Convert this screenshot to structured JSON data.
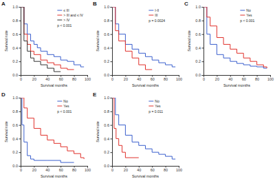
{
  "chart_data": [
    {
      "type": "line",
      "title": "A",
      "x_label": "Survival months",
      "y_label": "Survival rate",
      "annotation": "p < 0.001",
      "legend": "upper-right",
      "line_style": "step",
      "xlim": [
        0,
        100
      ],
      "xticks": [
        0,
        20,
        40,
        60,
        80,
        100
      ],
      "ylim": [
        0,
        1
      ],
      "yticks": [
        {
          "value": 0,
          "label": "0.0"
        },
        0.2,
        0.4,
        0.6,
        0.8,
        {
          "value": 1,
          "label": "1.0"
        }
      ],
      "series": [
        {
          "name": "≤ III",
          "color": "#3a5fcd",
          "x": [
            0,
            5,
            10,
            15,
            20,
            25,
            30,
            40,
            50,
            60,
            70,
            80,
            90,
            95
          ],
          "values": [
            1,
            0.75,
            0.6,
            0.5,
            0.45,
            0.4,
            0.35,
            0.3,
            0.27,
            0.22,
            0.2,
            0.15,
            0.12,
            0.12
          ]
        },
        {
          "name": "> III and ≤ IV",
          "color": "#e0302a",
          "x": [
            0,
            5,
            10,
            15,
            20,
            30,
            40,
            50,
            60,
            70,
            80
          ],
          "values": [
            1,
            0.6,
            0.45,
            0.35,
            0.3,
            0.22,
            0.18,
            0.15,
            0.1,
            0.08,
            0.08
          ]
        },
        {
          "name": "> IV",
          "color": "#333333",
          "x": [
            0,
            5,
            10,
            15,
            20,
            30,
            40,
            50,
            60
          ],
          "values": [
            1,
            0.5,
            0.35,
            0.25,
            0.2,
            0.15,
            0.1,
            0.05,
            0.05
          ]
        }
      ]
    },
    {
      "type": "line",
      "title": "B",
      "x_label": "Survival months",
      "y_label": "Survival rate",
      "annotation": "p = 0.0024",
      "legend": "upper-right",
      "line_style": "step",
      "xlim": [
        0,
        100
      ],
      "xticks": [
        0,
        20,
        40,
        60,
        80,
        100
      ],
      "ylim": [
        0,
        1
      ],
      "yticks": [
        {
          "value": 0,
          "label": "0.0"
        },
        0.2,
        0.4,
        0.6,
        0.8,
        {
          "value": 1,
          "label": "1.0"
        }
      ],
      "series": [
        {
          "name": "I-II",
          "color": "#3a5fcd",
          "x": [
            0,
            5,
            10,
            20,
            30,
            40,
            50,
            60,
            70,
            80,
            90,
            95
          ],
          "values": [
            1,
            0.75,
            0.6,
            0.45,
            0.38,
            0.32,
            0.27,
            0.22,
            0.18,
            0.15,
            0.12,
            0.12
          ]
        },
        {
          "name": "III",
          "color": "#e0302a",
          "x": [
            0,
            5,
            10,
            20,
            30,
            40,
            50,
            60
          ],
          "values": [
            1,
            0.65,
            0.5,
            0.35,
            0.25,
            0.15,
            0.08,
            0.08
          ]
        }
      ]
    },
    {
      "type": "line",
      "title": "C",
      "x_label": "Survival months",
      "y_label": "Survival rate",
      "annotation": "p < 0.001",
      "legend": "upper-right",
      "line_style": "step",
      "xlim": [
        0,
        100
      ],
      "xticks": [
        0,
        20,
        40,
        60,
        80,
        100
      ],
      "ylim": [
        0,
        1
      ],
      "yticks": [
        {
          "value": 0,
          "label": "0.0"
        },
        0.2,
        0.4,
        0.6,
        0.8,
        {
          "value": 1,
          "label": "1.0"
        }
      ],
      "series": [
        {
          "name": "No",
          "color": "#3a5fcd",
          "x": [
            0,
            5,
            10,
            20,
            30,
            40,
            50,
            60,
            70,
            80,
            90,
            95
          ],
          "values": [
            1,
            0.6,
            0.45,
            0.3,
            0.25,
            0.2,
            0.17,
            0.15,
            0.13,
            0.12,
            0.1,
            0.1
          ]
        },
        {
          "name": "Yes",
          "color": "#e0302a",
          "x": [
            0,
            5,
            10,
            20,
            30,
            40,
            50,
            60,
            70,
            80,
            90,
            95
          ],
          "values": [
            1,
            0.85,
            0.72,
            0.55,
            0.45,
            0.38,
            0.32,
            0.25,
            0.2,
            0.15,
            0.12,
            0.1
          ]
        }
      ]
    },
    {
      "type": "line",
      "title": "D",
      "x_label": "Survival months",
      "y_label": "Survival rate",
      "annotation": "p < 0.001",
      "legend": "upper-right",
      "line_style": "step",
      "xlim": [
        0,
        100
      ],
      "xticks": [
        0,
        20,
        40,
        60,
        80,
        100
      ],
      "ylim": [
        0,
        1
      ],
      "yticks": [
        {
          "value": 0,
          "label": "0.0"
        },
        0.2,
        0.4,
        0.6,
        0.8,
        {
          "value": 1,
          "label": "1.0"
        }
      ],
      "series": [
        {
          "name": "No",
          "color": "#3a5fcd",
          "x": [
            0,
            2,
            5,
            10,
            15,
            20,
            40,
            60,
            80
          ],
          "values": [
            1,
            0.6,
            0.35,
            0.15,
            0.1,
            0.08,
            0.08,
            0.05,
            0.05
          ]
        },
        {
          "name": "Yes",
          "color": "#e0302a",
          "x": [
            0,
            5,
            10,
            20,
            30,
            40,
            50,
            60,
            70,
            80,
            90,
            95
          ],
          "values": [
            1,
            0.85,
            0.7,
            0.55,
            0.45,
            0.38,
            0.33,
            0.28,
            0.22,
            0.18,
            0.12,
            0.1
          ]
        }
      ]
    },
    {
      "type": "line",
      "title": "E",
      "x_label": "Survival months",
      "y_label": "Survival rate",
      "annotation": "p = 0.011",
      "legend": "upper-right",
      "line_style": "step",
      "xlim": [
        0,
        100
      ],
      "xticks": [
        0,
        20,
        40,
        60,
        80,
        100
      ],
      "ylim": [
        0,
        1
      ],
      "yticks": [
        {
          "value": 0,
          "label": "0.0"
        },
        0.2,
        0.4,
        0.6,
        0.8,
        {
          "value": 1,
          "label": "1.0"
        }
      ],
      "series": [
        {
          "name": "No",
          "color": "#3a5fcd",
          "x": [
            0,
            5,
            10,
            20,
            30,
            40,
            50,
            60,
            70,
            80,
            90,
            95
          ],
          "values": [
            1,
            0.75,
            0.6,
            0.45,
            0.35,
            0.3,
            0.25,
            0.2,
            0.17,
            0.14,
            0.1,
            0.1
          ]
        },
        {
          "name": "Yes",
          "color": "#e0302a",
          "x": [
            0,
            3,
            6,
            10,
            15,
            20,
            40
          ],
          "values": [
            1,
            0.55,
            0.4,
            0.3,
            0.2,
            0.12,
            0.12
          ]
        }
      ]
    }
  ]
}
